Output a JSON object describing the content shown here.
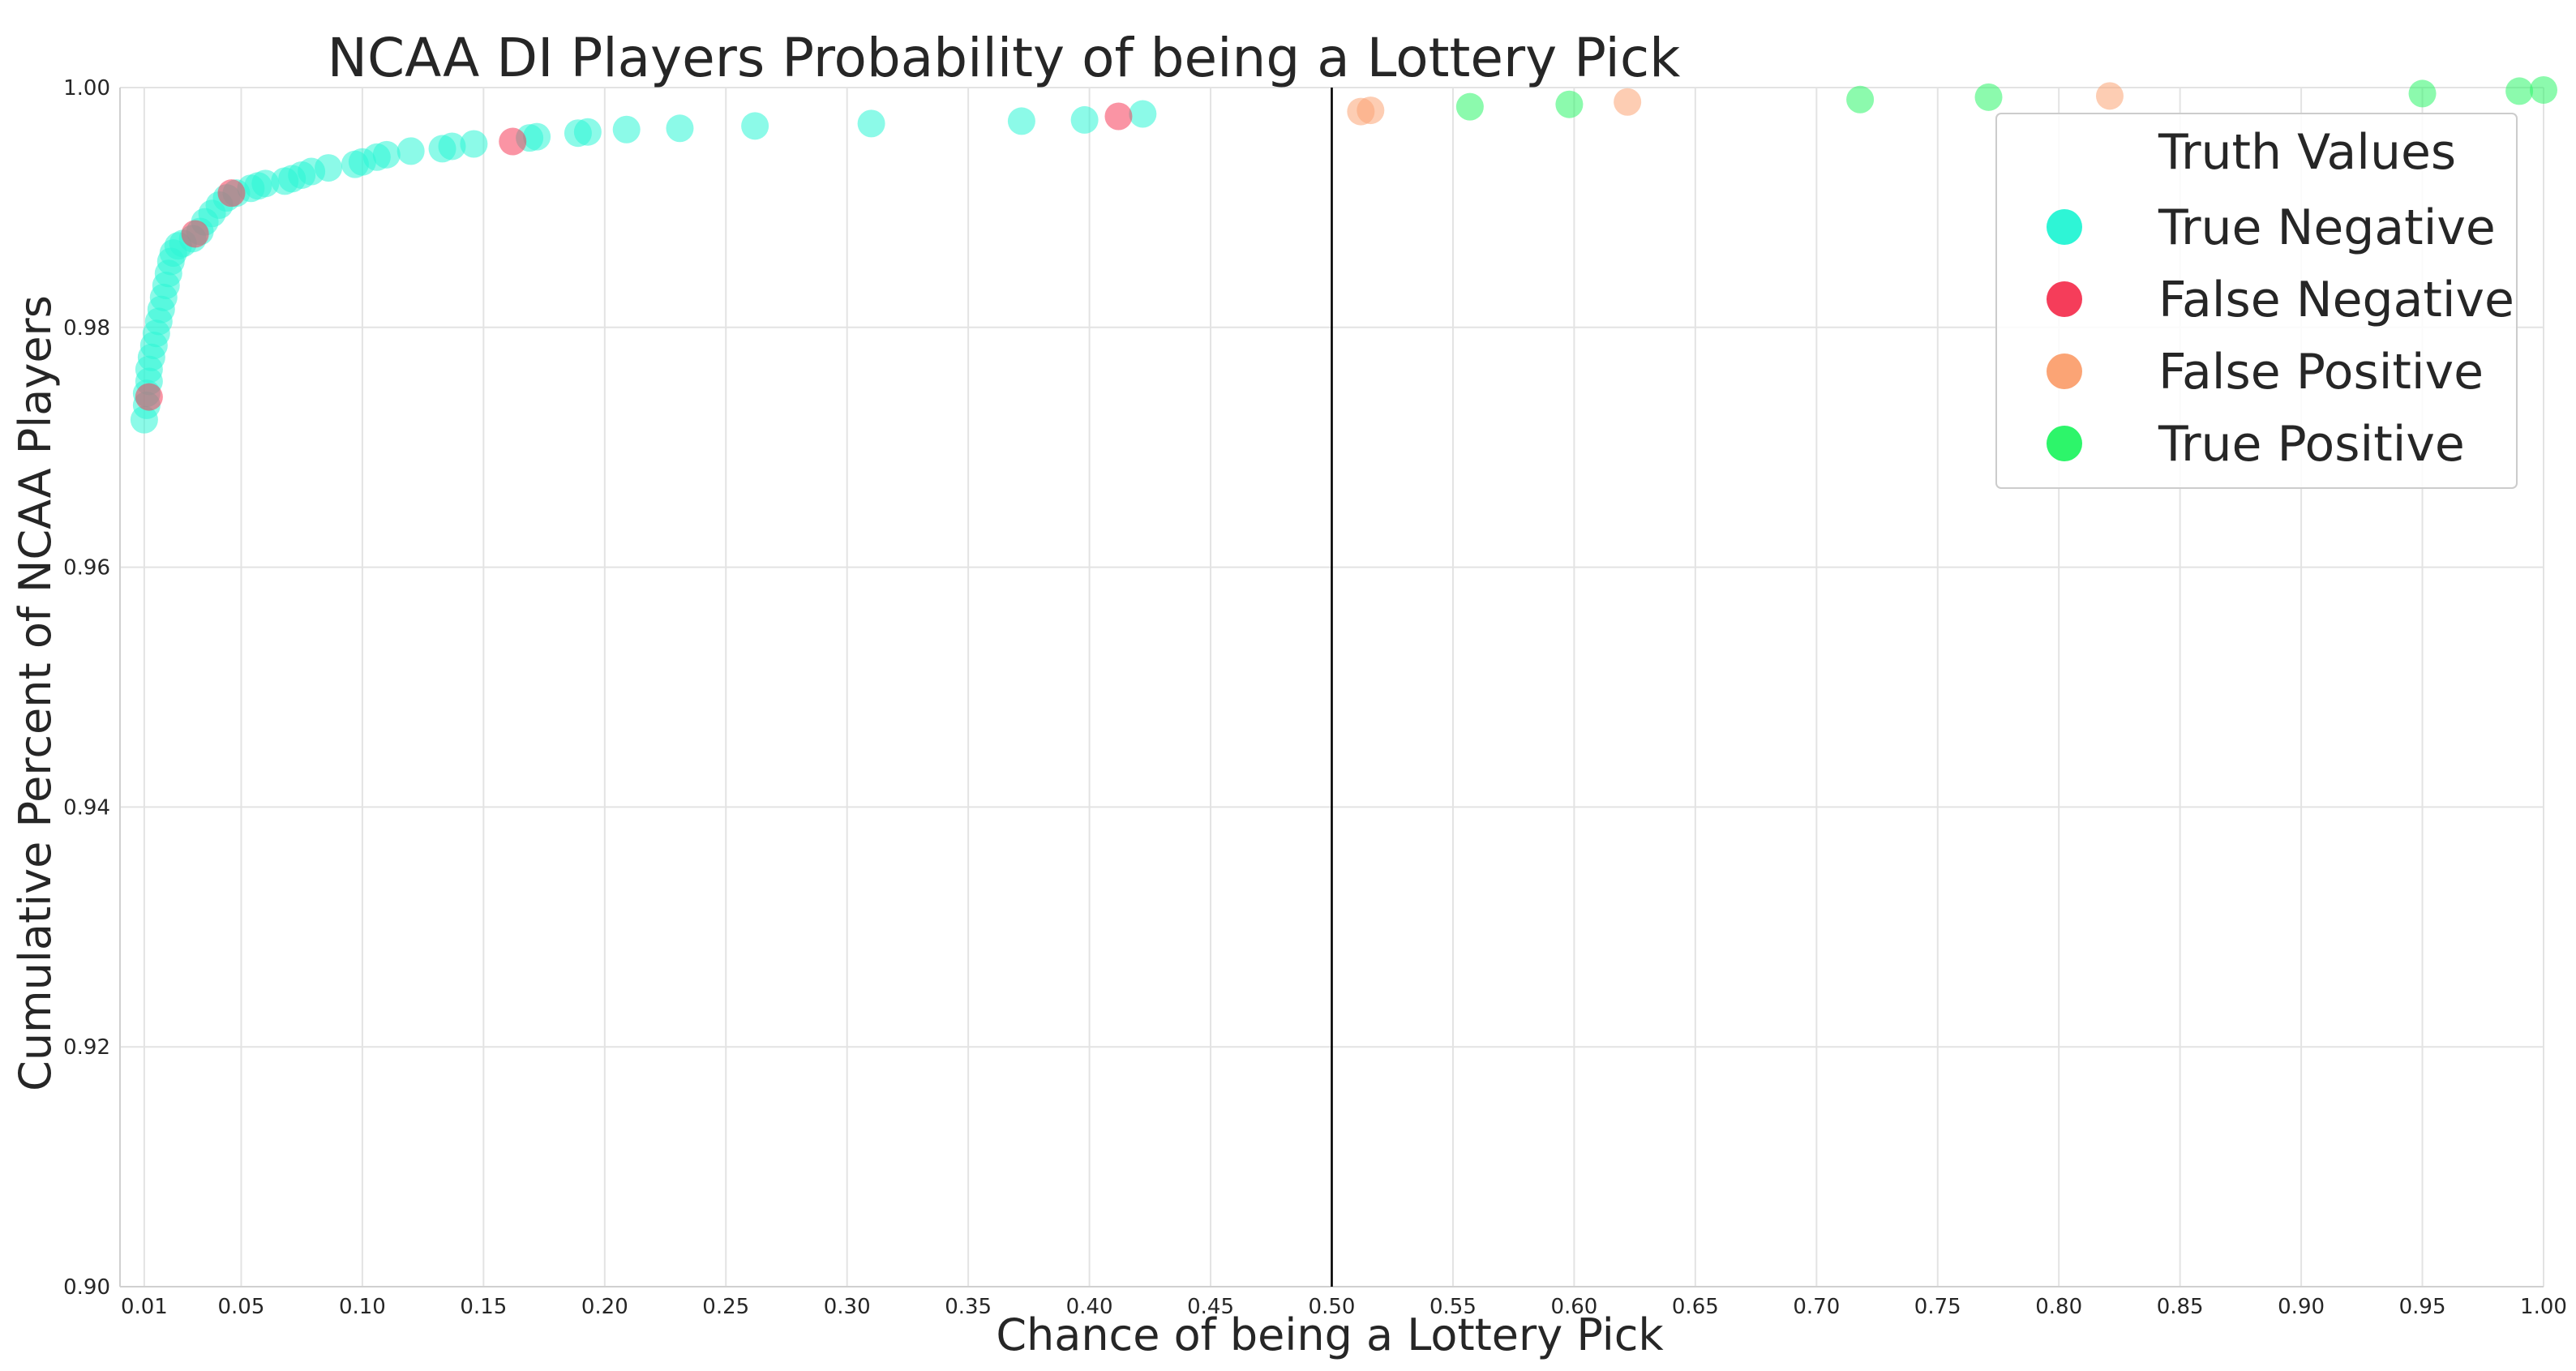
{
  "chart_data": {
    "type": "scatter",
    "title": "NCAA DI Players Probability of being a Lottery Pick",
    "xlabel": "Chance of being a Lottery Pick",
    "ylabel": "Cumulative Percent of NCAA Players",
    "xlim": [
      0.0,
      1.0
    ],
    "ylim": [
      0.9,
      1.0
    ],
    "x_ticks": [
      0.01,
      0.05,
      0.1,
      0.15,
      0.2,
      0.25,
      0.3,
      0.35,
      0.4,
      0.45,
      0.5,
      0.55,
      0.6,
      0.65,
      0.7,
      0.75,
      0.8,
      0.85,
      0.9,
      0.95,
      1.0
    ],
    "x_tick_labels": [
      "0.01",
      "0.05",
      "0.10",
      "0.15",
      "0.20",
      "0.25",
      "0.30",
      "0.35",
      "0.40",
      "0.45",
      "0.50",
      "0.55",
      "0.60",
      "0.65",
      "0.70",
      "0.75",
      "0.80",
      "0.85",
      "0.90",
      "0.95",
      "1.00"
    ],
    "y_ticks": [
      0.9,
      0.92,
      0.94,
      0.96,
      0.98,
      1.0
    ],
    "y_tick_labels": [
      "0.90",
      "0.92",
      "0.94",
      "0.96",
      "0.98",
      "1.00"
    ],
    "grid": true,
    "vertical_line_x": 0.5,
    "legend": {
      "title": "Truth Values",
      "placement": "top-right",
      "entries": [
        "True Negative",
        "False Negative",
        "False Positive",
        "True Positive"
      ]
    },
    "colors": {
      "True Negative": "#2ef5d6",
      "False Negative": "#f53d5a",
      "False Positive": "#fba475",
      "True Positive": "#2df56a"
    },
    "series": [
      {
        "name": "True Negative",
        "points": [
          [
            0.01,
            0.9723
          ],
          [
            0.011,
            0.9735
          ],
          [
            0.011,
            0.9745
          ],
          [
            0.012,
            0.9755
          ],
          [
            0.012,
            0.9765
          ],
          [
            0.013,
            0.9775
          ],
          [
            0.014,
            0.9785
          ],
          [
            0.015,
            0.9795
          ],
          [
            0.016,
            0.9805
          ],
          [
            0.017,
            0.9815
          ],
          [
            0.018,
            0.9825
          ],
          [
            0.019,
            0.9835
          ],
          [
            0.02,
            0.9845
          ],
          [
            0.021,
            0.9855
          ],
          [
            0.022,
            0.9862
          ],
          [
            0.024,
            0.9868
          ],
          [
            0.026,
            0.987
          ],
          [
            0.03,
            0.9874
          ],
          [
            0.033,
            0.988
          ],
          [
            0.035,
            0.9888
          ],
          [
            0.038,
            0.9895
          ],
          [
            0.041,
            0.9902
          ],
          [
            0.044,
            0.9908
          ],
          [
            0.048,
            0.9912
          ],
          [
            0.054,
            0.9916
          ],
          [
            0.057,
            0.9918
          ],
          [
            0.06,
            0.992
          ],
          [
            0.068,
            0.9922
          ],
          [
            0.071,
            0.9924
          ],
          [
            0.075,
            0.9927
          ],
          [
            0.079,
            0.993
          ],
          [
            0.086,
            0.9933
          ],
          [
            0.097,
            0.9936
          ],
          [
            0.1,
            0.9938
          ],
          [
            0.106,
            0.9942
          ],
          [
            0.11,
            0.9944
          ],
          [
            0.12,
            0.9947
          ],
          [
            0.133,
            0.9949
          ],
          [
            0.137,
            0.9951
          ],
          [
            0.146,
            0.9953
          ],
          [
            0.169,
            0.9958
          ],
          [
            0.172,
            0.9959
          ],
          [
            0.189,
            0.9962
          ],
          [
            0.193,
            0.9963
          ],
          [
            0.209,
            0.9965
          ],
          [
            0.231,
            0.9966
          ],
          [
            0.262,
            0.9968
          ],
          [
            0.31,
            0.997
          ],
          [
            0.372,
            0.9972
          ],
          [
            0.398,
            0.9973
          ],
          [
            0.422,
            0.9978
          ]
        ]
      },
      {
        "name": "False Negative",
        "points": [
          [
            0.012,
            0.9742
          ],
          [
            0.031,
            0.9878
          ],
          [
            0.046,
            0.9912
          ],
          [
            0.162,
            0.9955
          ],
          [
            0.412,
            0.9976
          ]
        ]
      },
      {
        "name": "False Positive",
        "points": [
          [
            0.512,
            0.998
          ],
          [
            0.516,
            0.9981
          ],
          [
            0.622,
            0.9988
          ],
          [
            0.821,
            0.9993
          ]
        ]
      },
      {
        "name": "True Positive",
        "points": [
          [
            0.557,
            0.9984
          ],
          [
            0.598,
            0.9986
          ],
          [
            0.718,
            0.999
          ],
          [
            0.771,
            0.9992
          ],
          [
            0.95,
            0.9995
          ],
          [
            0.99,
            0.9997
          ],
          [
            1.0,
            0.9998
          ]
        ]
      }
    ]
  }
}
